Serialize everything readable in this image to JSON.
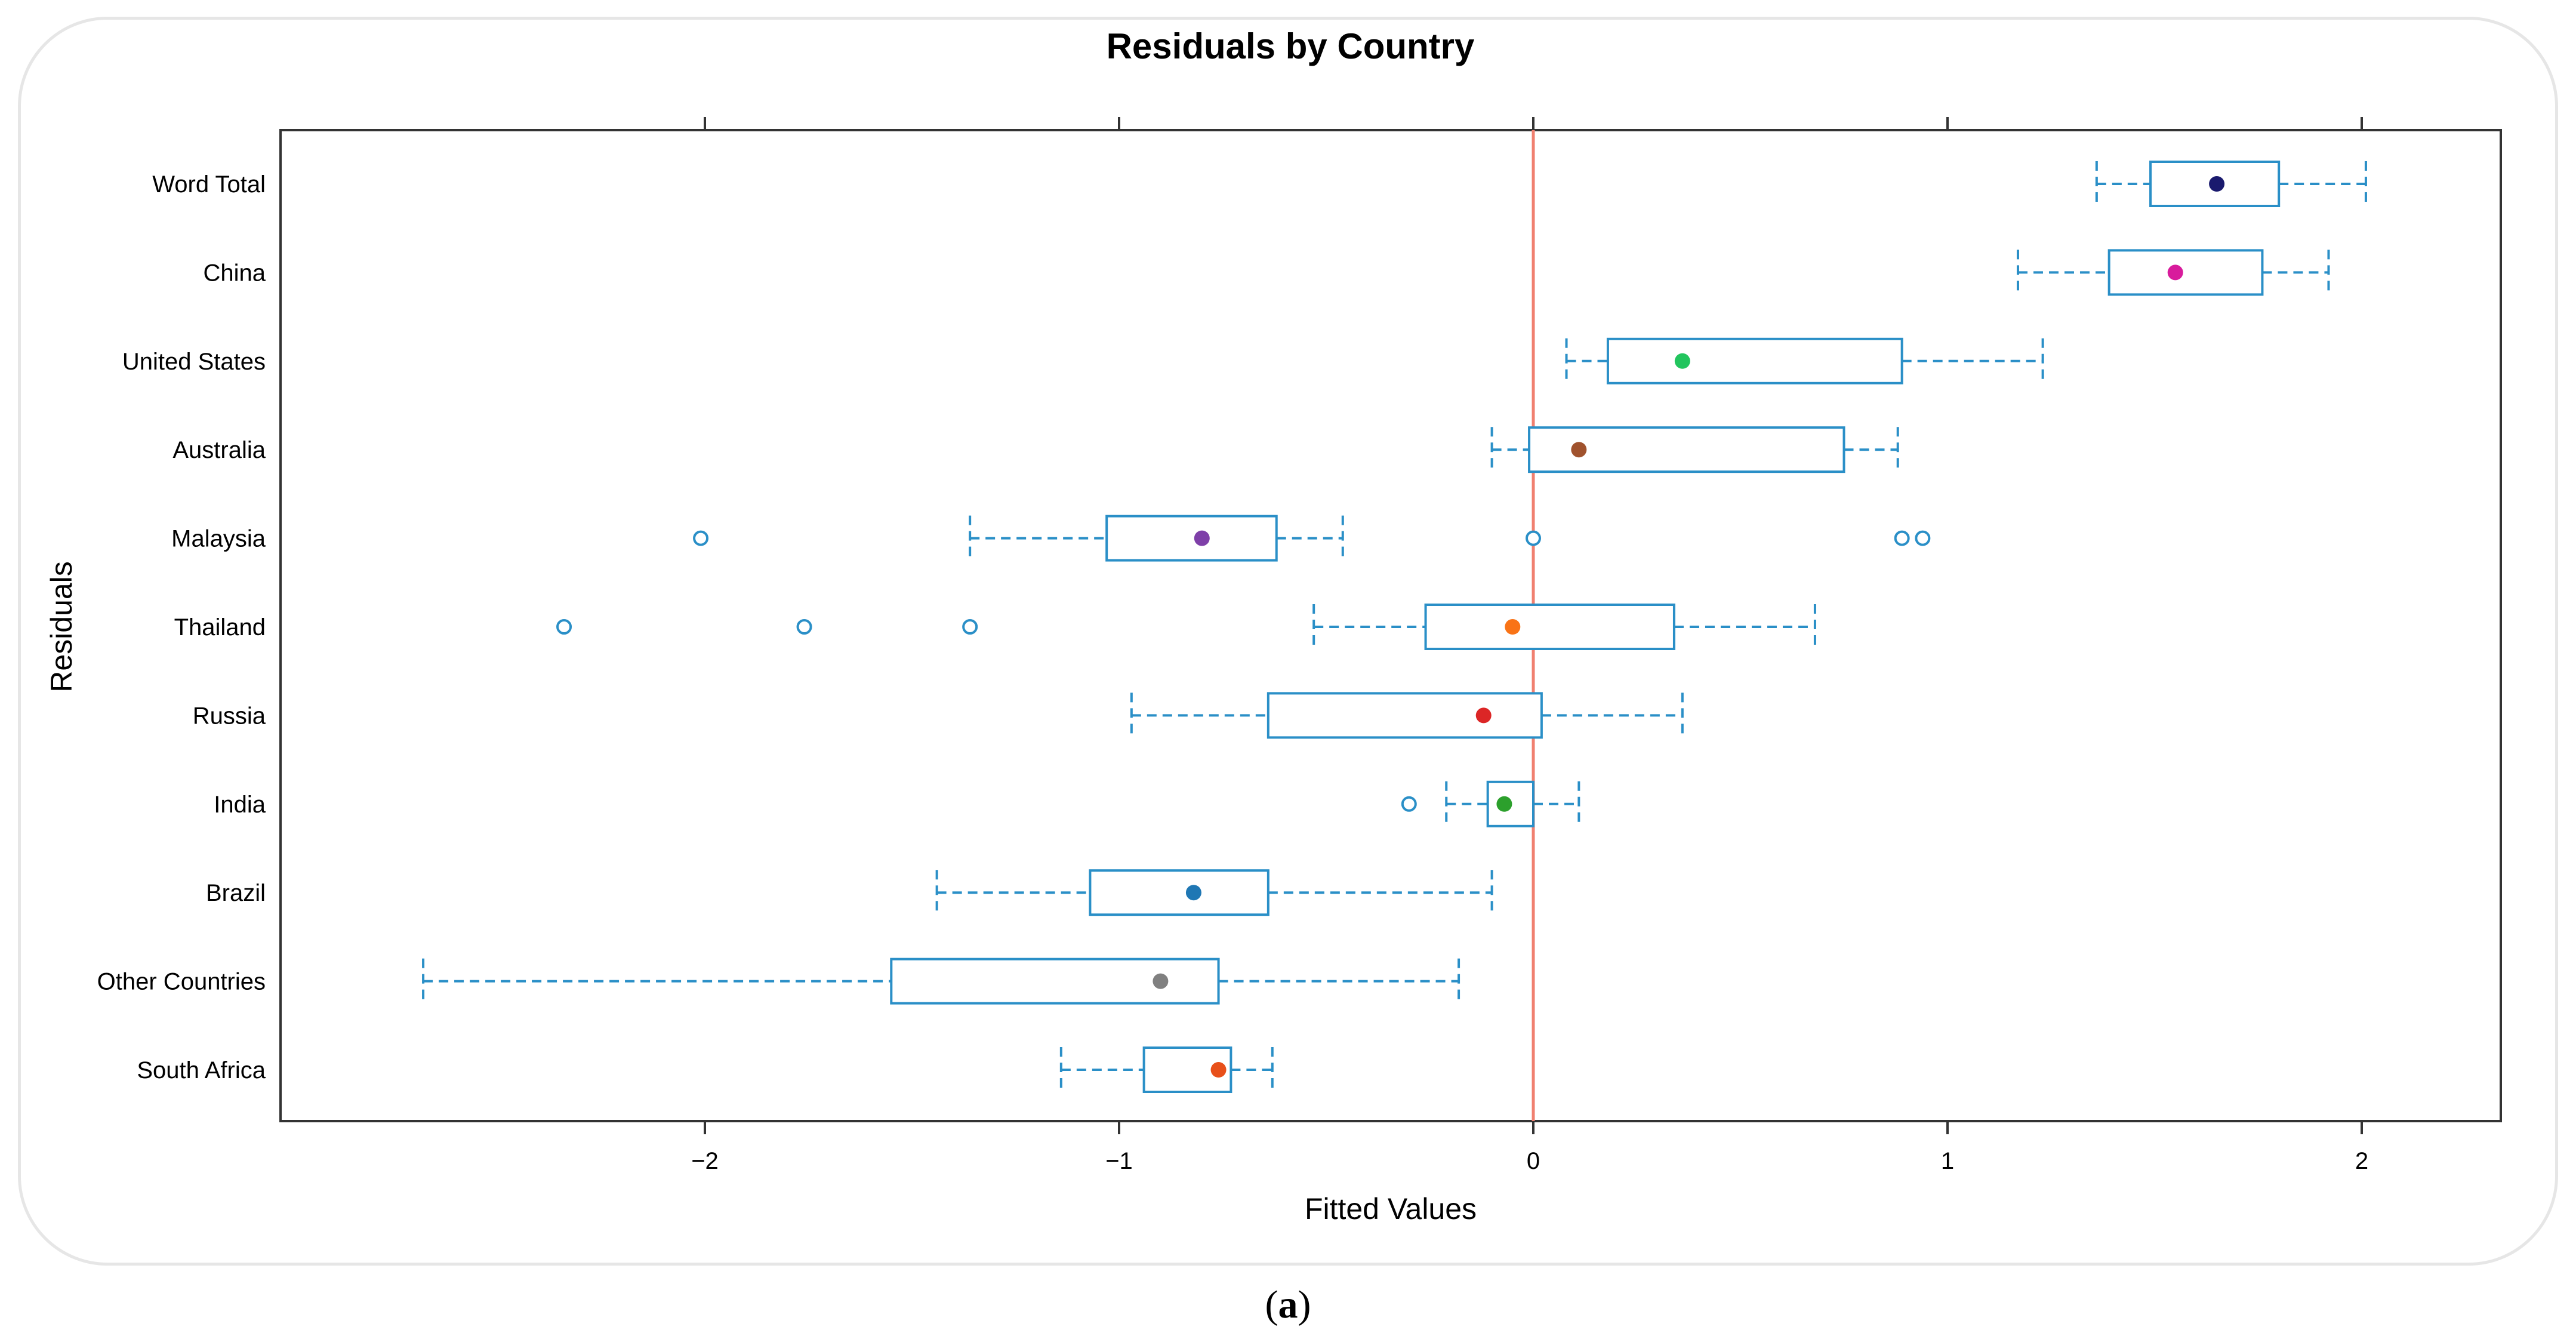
{
  "chart_data": {
    "type": "boxplot",
    "orientation": "horizontal",
    "title": "Residuals by Country",
    "xlabel": "Fitted Values",
    "ylabel": "Residuals",
    "xlim": [
      -3.0,
      2.35
    ],
    "xticks": [
      -2,
      -1,
      0,
      1,
      2
    ],
    "xtick_labels": [
      "−2",
      "−1",
      "0",
      "1",
      "2"
    ],
    "reference_line": {
      "x": 0,
      "color": "#f08070"
    },
    "box_color": "#2a8fc7",
    "categories": [
      "Word Total",
      "China",
      "United States",
      "Australia",
      "Malaysia",
      "Thailand",
      "Russia",
      "India",
      "Brazil",
      "Other Countries",
      "South Africa"
    ],
    "boxes": [
      {
        "label": "Word Total",
        "whisker_low": 1.36,
        "q1": 1.49,
        "median": 1.65,
        "q3": 1.8,
        "whisker_high": 2.01,
        "outliers": [],
        "color": "#1a1a6e"
      },
      {
        "label": "China",
        "whisker_low": 1.17,
        "q1": 1.39,
        "median": 1.55,
        "q3": 1.76,
        "whisker_high": 1.92,
        "outliers": [],
        "color": "#d81b9c"
      },
      {
        "label": "United States",
        "whisker_low": 0.08,
        "q1": 0.18,
        "median": 0.36,
        "q3": 0.89,
        "whisker_high": 1.23,
        "outliers": [],
        "color": "#22c55e"
      },
      {
        "label": "Australia",
        "whisker_low": -0.1,
        "q1": -0.01,
        "median": 0.11,
        "q3": 0.75,
        "whisker_high": 0.88,
        "outliers": [],
        "color": "#a0522d"
      },
      {
        "label": "Malaysia",
        "whisker_low": -1.36,
        "q1": -1.03,
        "median": -0.8,
        "q3": -0.62,
        "whisker_high": -0.46,
        "outliers": [
          -2.01,
          0.0,
          0.89,
          0.94
        ],
        "color": "#7e3fa8"
      },
      {
        "label": "Thailand",
        "whisker_low": -0.53,
        "q1": -0.26,
        "median": -0.05,
        "q3": 0.34,
        "whisker_high": 0.68,
        "outliers": [
          -2.34,
          -1.76,
          -1.36
        ],
        "color": "#f97316"
      },
      {
        "label": "Russia",
        "whisker_low": -0.97,
        "q1": -0.64,
        "median": -0.12,
        "q3": 0.02,
        "whisker_high": 0.36,
        "outliers": [],
        "color": "#dc2626"
      },
      {
        "label": "India",
        "whisker_low": -0.21,
        "q1": -0.11,
        "median": -0.07,
        "q3": 0.0,
        "whisker_high": 0.11,
        "outliers": [
          -0.3
        ],
        "color": "#2ca02c"
      },
      {
        "label": "Brazil",
        "whisker_low": -1.44,
        "q1": -1.07,
        "median": -0.82,
        "q3": -0.64,
        "whisker_high": -0.1,
        "outliers": [],
        "color": "#1f77b4"
      },
      {
        "label": "Other Countries",
        "whisker_low": -2.68,
        "q1": -1.55,
        "median": -0.9,
        "q3": -0.76,
        "whisker_high": -0.18,
        "outliers": [],
        "color": "#808080"
      },
      {
        "label": "South Africa",
        "whisker_low": -1.14,
        "q1": -0.94,
        "median": -0.76,
        "q3": -0.73,
        "whisker_high": -0.63,
        "outliers": [],
        "color": "#e8501a"
      }
    ]
  },
  "caption": {
    "open": "(",
    "label": "a",
    "close": ")"
  }
}
